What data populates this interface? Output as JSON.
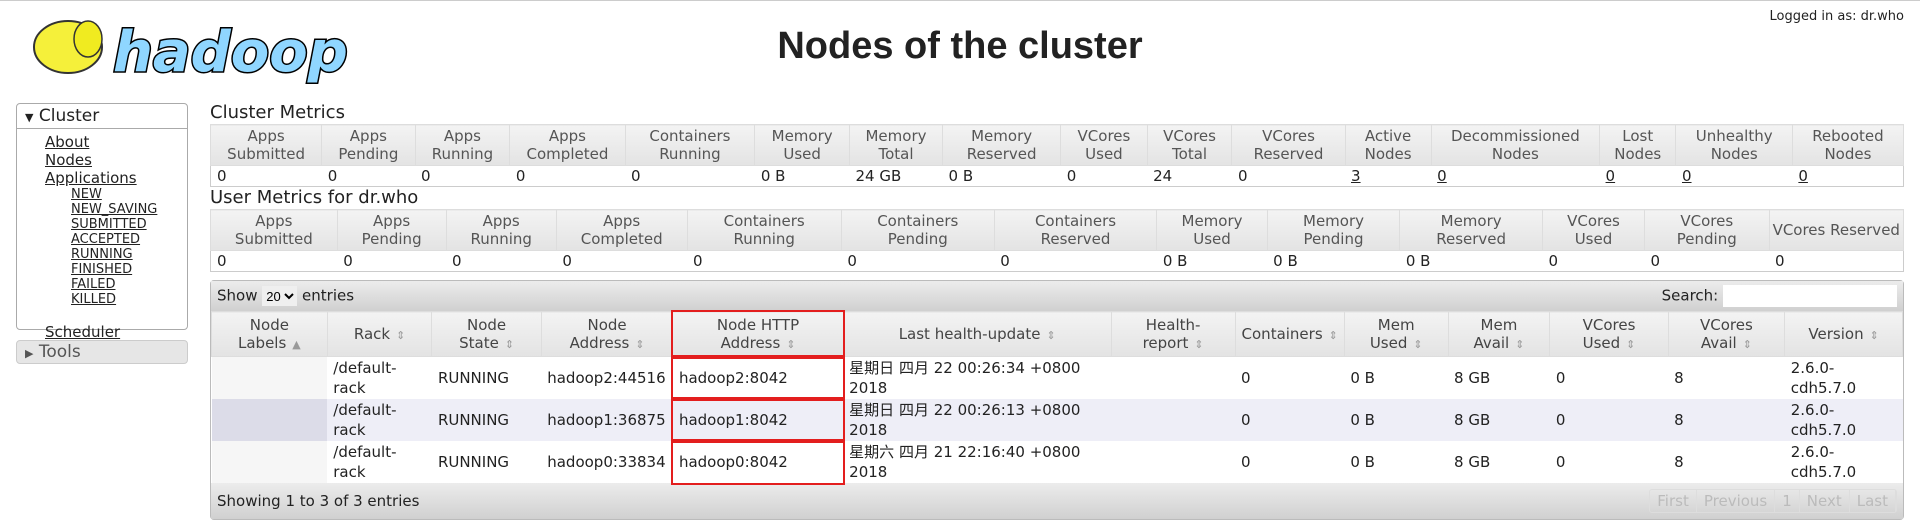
{
  "header": {
    "logo_text": "hadoop",
    "title": "Nodes of the cluster",
    "logged_in": "Logged in as: dr.who"
  },
  "nav": {
    "cluster": "Cluster",
    "items": [
      "About",
      "Nodes",
      "Applications"
    ],
    "app_states": [
      "NEW",
      "NEW_SAVING",
      "SUBMITTED",
      "ACCEPTED",
      "RUNNING",
      "FINISHED",
      "FAILED",
      "KILLED"
    ],
    "scheduler": "Scheduler",
    "tools": "Tools"
  },
  "cluster_metrics": {
    "title": "Cluster Metrics",
    "headers": [
      "Apps Submitted",
      "Apps Pending",
      "Apps Running",
      "Apps Completed",
      "Containers Running",
      "Memory Used",
      "Memory Total",
      "Memory Reserved",
      "VCores Used",
      "VCores Total",
      "VCores Reserved",
      "Active Nodes",
      "Decommissioned Nodes",
      "Lost Nodes",
      "Unhealthy Nodes",
      "Rebooted Nodes"
    ],
    "values": [
      "0",
      "0",
      "0",
      "0",
      "0",
      "0 B",
      "24 GB",
      "0 B",
      "0",
      "24",
      "0",
      "3",
      "0",
      "0",
      "0",
      "0"
    ]
  },
  "user_metrics": {
    "title": "User Metrics for dr.who",
    "headers": [
      "Apps Submitted",
      "Apps Pending",
      "Apps Running",
      "Apps Completed",
      "Containers Running",
      "Containers Pending",
      "Containers Reserved",
      "Memory Used",
      "Memory Pending",
      "Memory Reserved",
      "VCores Used",
      "VCores Pending",
      "VCores Reserved"
    ],
    "values": [
      "0",
      "0",
      "0",
      "0",
      "0",
      "0",
      "0",
      "0 B",
      "0 B",
      "0 B",
      "0",
      "0",
      "0"
    ]
  },
  "nodes": {
    "show": "Show",
    "entries_value": "20",
    "entries": "entries",
    "search": "Search:",
    "headers": [
      "Node Labels",
      "Rack",
      "Node State",
      "Node Address",
      "Node HTTP Address",
      "Last health-update",
      "Health-report",
      "Containers",
      "Mem Used",
      "Mem Avail",
      "VCores Used",
      "VCores Avail",
      "Version"
    ],
    "rows": [
      [
        "",
        "/default-rack",
        "RUNNING",
        "hadoop2:44516",
        "hadoop2:8042",
        "星期日 四月 22 00:26:34 +0800 2018",
        "",
        "0",
        "0 B",
        "8 GB",
        "0",
        "8",
        "2.6.0-cdh5.7.0"
      ],
      [
        "",
        "/default-rack",
        "RUNNING",
        "hadoop1:36875",
        "hadoop1:8042",
        "星期日 四月 22 00:26:13 +0800 2018",
        "",
        "0",
        "0 B",
        "8 GB",
        "0",
        "8",
        "2.6.0-cdh5.7.0"
      ],
      [
        "",
        "/default-rack",
        "RUNNING",
        "hadoop0:33834",
        "hadoop0:8042",
        "星期六 四月 21 22:16:40 +0800 2018",
        "",
        "0",
        "0 B",
        "8 GB",
        "0",
        "8",
        "2.6.0-cdh5.7.0"
      ]
    ],
    "info": "Showing 1 to 3 of 3 entries",
    "pager": [
      "First",
      "Previous",
      "1",
      "Next",
      "Last"
    ]
  },
  "colors": {
    "highlight": "#e31e1e",
    "logo_blue": "#8fd6ff",
    "logo_yellow": "#f5f03a"
  }
}
